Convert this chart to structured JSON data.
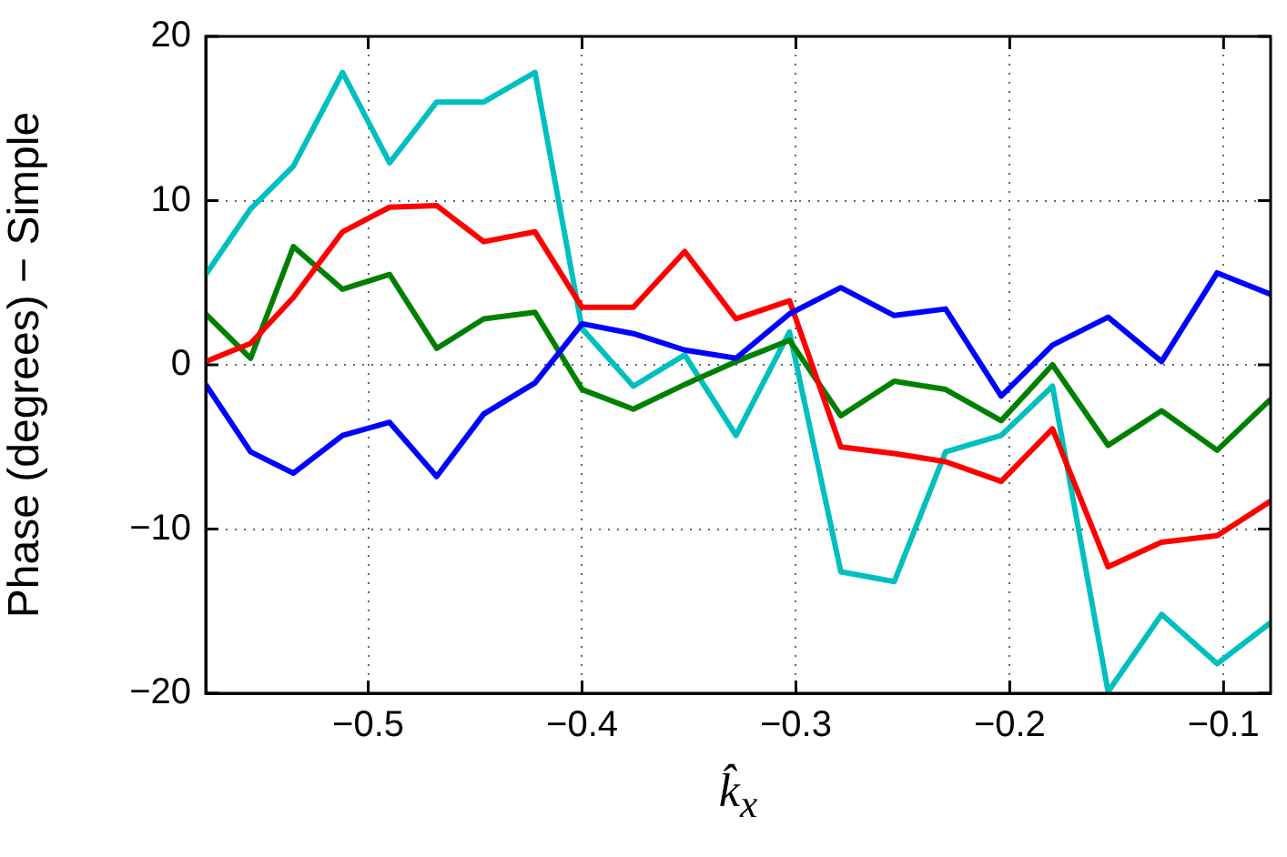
{
  "chart_data": {
    "type": "line",
    "xlabel": "k̂$_{x}$",
    "ylabel": "Phase (degrees) − Simple",
    "x": [
      -0.576,
      -0.555,
      -0.535,
      -0.512,
      -0.49,
      -0.468,
      -0.446,
      -0.422,
      -0.4,
      -0.376,
      -0.352,
      -0.328,
      -0.303,
      -0.279,
      -0.254,
      -0.23,
      -0.204,
      -0.18,
      -0.154,
      -0.129,
      -0.103,
      -0.078
    ],
    "series": [
      {
        "color": "#0000ff",
        "values": [
          -1.2,
          -5.3,
          -6.6,
          -4.3,
          -3.5,
          -6.8,
          -3.0,
          -1.1,
          2.5,
          1.9,
          0.9,
          0.4,
          3.1,
          4.7,
          3.0,
          3.4,
          -1.9,
          1.2,
          2.9,
          0.2,
          5.6,
          4.3
        ]
      },
      {
        "color": "#ff0000",
        "values": [
          0.2,
          1.3,
          4.1,
          8.1,
          9.6,
          9.7,
          7.5,
          8.1,
          3.5,
          3.5,
          6.9,
          2.8,
          3.9,
          -5.0,
          -5.4,
          -5.9,
          -7.1,
          -3.9,
          -12.3,
          -10.8,
          -10.4,
          -8.3
        ]
      },
      {
        "color": "#008000",
        "values": [
          3.1,
          0.4,
          7.2,
          4.6,
          5.5,
          1.0,
          2.8,
          3.2,
          -1.5,
          -2.7,
          -1.2,
          0.2,
          1.5,
          -3.1,
          -1.0,
          -1.5,
          -3.4,
          0.0,
          -4.9,
          -2.8,
          -5.2,
          -2.1
        ]
      },
      {
        "color": "#00bfbf",
        "values": [
          5.5,
          9.5,
          12.1,
          17.8,
          12.3,
          16.0,
          16.0,
          17.8,
          2.2,
          -1.3,
          0.6,
          -4.3,
          2.0,
          -12.6,
          -13.2,
          -5.3,
          -4.3,
          -1.3,
          -19.9,
          -15.2,
          -18.2,
          -15.7
        ]
      }
    ],
    "xlim": [
      -0.576,
      -0.078
    ],
    "ylim": [
      -20,
      20
    ],
    "xticks": [
      {
        "value": -0.5,
        "label": "−0.5"
      },
      {
        "value": -0.4,
        "label": "−0.4"
      },
      {
        "value": -0.3,
        "label": "−0.3"
      },
      {
        "value": -0.2,
        "label": "−0.2"
      },
      {
        "value": -0.1,
        "label": "−0.1"
      }
    ],
    "yticks": [
      {
        "value": -20,
        "label": "−20"
      },
      {
        "value": -10,
        "label": "−10"
      },
      0,
      10,
      20
    ],
    "grid": true,
    "legend": false,
    "line_style": "solid",
    "marker": "none"
  }
}
